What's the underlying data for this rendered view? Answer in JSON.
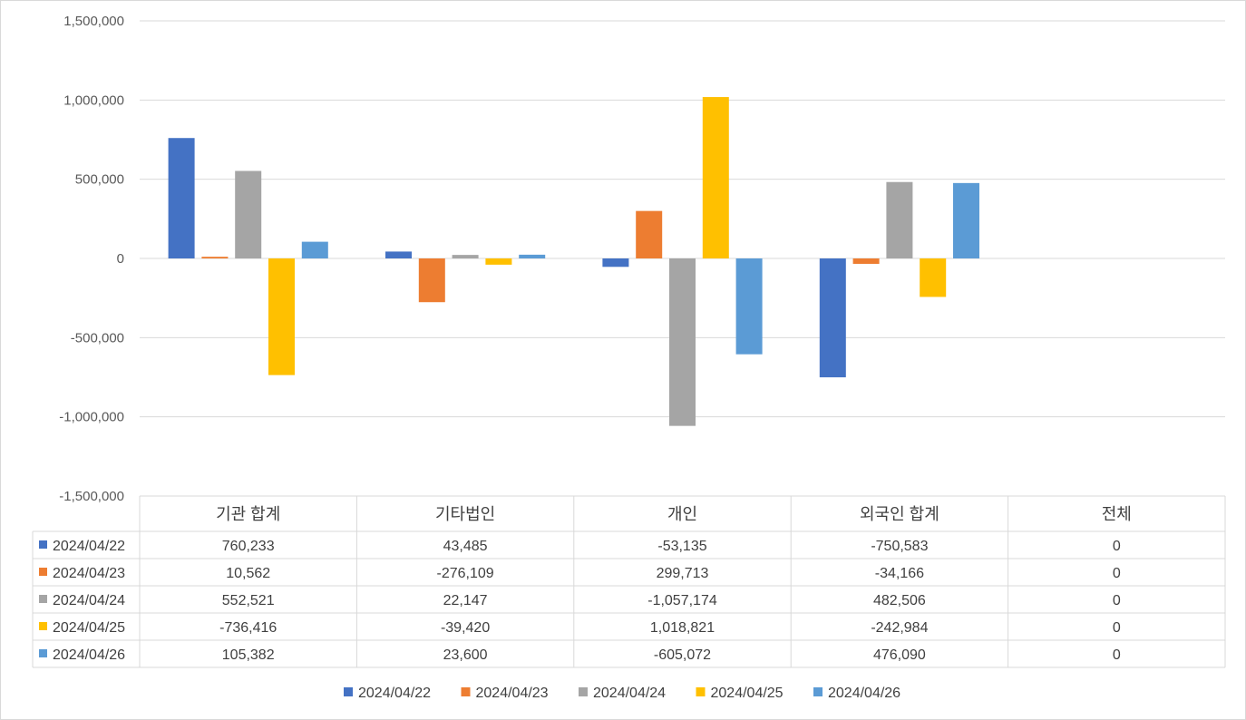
{
  "chart_data": {
    "type": "bar",
    "title": "",
    "xlabel": "",
    "ylabel": "",
    "ylim": [
      -1500000,
      1500000
    ],
    "yticks": [
      1500000,
      1000000,
      500000,
      0,
      -500000,
      -1000000,
      -1500000
    ],
    "ytick_labels": [
      "1,500,000",
      "1,000,000",
      "500,000",
      "0",
      "-500,000",
      "-1,000,000",
      "-1,500,000"
    ],
    "categories": [
      "기관 합계",
      "기타법인",
      "개인",
      "외국인 합계",
      "전체"
    ],
    "series": [
      {
        "name": "2024/04/22",
        "color": "#4472C4",
        "values": [
          760233,
          43485,
          -53135,
          -750583,
          0
        ],
        "labels": [
          "760,233",
          "43,485",
          "-53,135",
          "-750,583",
          "0"
        ]
      },
      {
        "name": "2024/04/23",
        "color": "#ED7D31",
        "values": [
          10562,
          -276109,
          299713,
          -34166,
          0
        ],
        "labels": [
          "10,562",
          "-276,109",
          "299,713",
          "-34,166",
          "0"
        ]
      },
      {
        "name": "2024/04/24",
        "color": "#A5A5A5",
        "values": [
          552521,
          22147,
          -1057174,
          482506,
          0
        ],
        "labels": [
          "552,521",
          "22,147",
          "-1,057,174",
          "482,506",
          "0"
        ]
      },
      {
        "name": "2024/04/25",
        "color": "#FFC000",
        "values": [
          -736416,
          -39420,
          1018821,
          -242984,
          0
        ],
        "labels": [
          "-736,416",
          "-39,420",
          "1,018,821",
          "-242,984",
          "0"
        ]
      },
      {
        "name": "2024/04/26",
        "color": "#5B9BD5",
        "values": [
          105382,
          23600,
          -605072,
          476090,
          0
        ],
        "labels": [
          "105,382",
          "23,600",
          "-605,072",
          "476,090",
          "0"
        ]
      }
    ],
    "legend_position": "bottom",
    "grid": true,
    "data_table": true
  }
}
